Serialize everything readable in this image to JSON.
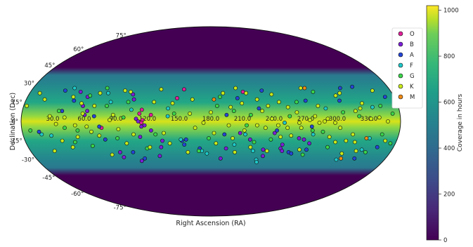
{
  "chart_data": {
    "type": "scatter",
    "projection": "mollweide",
    "xlabel": "Right Ascension (RA)",
    "ylabel": "Declination (Dec)",
    "colorbar": {
      "label": "Coverage in hours",
      "range": [
        0,
        1020
      ],
      "ticks": [
        "0",
        "200",
        "400",
        "600",
        "800",
        "1000"
      ],
      "colormap": "viridis"
    },
    "ra_ticks": [
      "30.0",
      "60.0",
      "90.0",
      "120.0",
      "150.0",
      "180.0",
      "210.0",
      "240.0",
      "270.0",
      "300.0",
      "330.0"
    ],
    "dec_ticks": [
      "75°",
      "60°",
      "45°",
      "30°",
      "15°",
      "0°",
      "-15°",
      "-30°",
      "-45°",
      "-60°",
      "-75°"
    ],
    "coverage_limits_dec": [
      -39,
      39
    ],
    "legend": {
      "placement": "top-right",
      "entries": [
        {
          "name": "O",
          "color": "#e0209a"
        },
        {
          "name": "B",
          "color": "#7b1fd8"
        },
        {
          "name": "A",
          "color": "#2445d6"
        },
        {
          "name": "F",
          "color": "#1ec8c8"
        },
        {
          "name": "G",
          "color": "#3ad44a"
        },
        {
          "name": "K",
          "color": "#c8ea1a"
        },
        {
          "name": "M",
          "color": "#ee8a14"
        }
      ]
    },
    "series": [
      {
        "name": "O",
        "color": "#e0209a",
        "points": [
          [
            212,
            23
          ],
          [
            114,
            9
          ],
          [
            112,
            6
          ],
          [
            115,
            1
          ],
          [
            114,
            -1
          ],
          [
            76,
            -5
          ],
          [
            123,
            5
          ],
          [
            147,
            18
          ],
          [
            153,
            25
          ]
        ]
      },
      {
        "name": "B",
        "color": "#7b1fd8",
        "points": [
          [
            50,
            23
          ],
          [
            57,
            12
          ],
          [
            59,
            19
          ],
          [
            60,
            5
          ],
          [
            62,
            8
          ],
          [
            105,
            17
          ],
          [
            103,
            21
          ],
          [
            109,
            2
          ],
          [
            111,
            0
          ],
          [
            114,
            -4
          ],
          [
            117,
            -3
          ],
          [
            123,
            -7
          ],
          [
            112,
            -12
          ],
          [
            133,
            -15
          ],
          [
            131,
            -20
          ],
          [
            128,
            -27
          ],
          [
            108,
            -31
          ],
          [
            91,
            -28
          ],
          [
            89,
            -24
          ],
          [
            190,
            -29
          ],
          [
            195,
            -21
          ],
          [
            208,
            -9
          ],
          [
            218,
            -14
          ],
          [
            232,
            -22
          ],
          [
            241,
            -9
          ],
          [
            249,
            -21
          ],
          [
            251,
            -23
          ],
          [
            233,
            -27
          ],
          [
            265,
            -13
          ],
          [
            270,
            -14
          ],
          [
            276,
            -17
          ],
          [
            250,
            -18
          ]
        ]
      },
      {
        "name": "A",
        "color": "#2445d6",
        "points": [
          [
            34,
            24
          ],
          [
            16,
            -8
          ],
          [
            38,
            8
          ],
          [
            47,
            16
          ],
          [
            69,
            4
          ],
          [
            74,
            -4
          ],
          [
            78,
            -14
          ],
          [
            102,
            -24
          ],
          [
            112,
            -29
          ],
          [
            152,
            -15
          ],
          [
            154,
            -18
          ],
          [
            156,
            -14
          ],
          [
            169,
            -21
          ],
          [
            193,
            -10
          ],
          [
            195,
            5
          ],
          [
            206,
            18
          ],
          [
            231,
            24
          ],
          [
            226,
            10
          ],
          [
            243,
            -7
          ],
          [
            258,
            -24
          ],
          [
            261,
            -25
          ],
          [
            275,
            -22
          ],
          [
            276,
            -4
          ],
          [
            272,
            16
          ],
          [
            305,
            16
          ],
          [
            311,
            26
          ],
          [
            324,
            27
          ],
          [
            351,
            19
          ],
          [
            344,
            -20
          ],
          [
            328,
            -29
          ]
        ]
      },
      {
        "name": "F",
        "color": "#1ec8c8",
        "points": [
          [
            18,
            -10
          ],
          [
            27,
            -11
          ],
          [
            42,
            26
          ],
          [
            78,
            22
          ],
          [
            83,
            15
          ],
          [
            104,
            9
          ],
          [
            139,
            4
          ],
          [
            139,
            10
          ],
          [
            151,
            -14
          ],
          [
            171,
            -23
          ],
          [
            176,
            -25
          ],
          [
            203,
            -18
          ],
          [
            213,
            -10
          ],
          [
            222,
            -23
          ],
          [
            227,
            -30
          ],
          [
            228,
            -32
          ],
          [
            250,
            -1
          ],
          [
            278,
            -10
          ],
          [
            290,
            10
          ],
          [
            310,
            -30
          ],
          [
            330,
            -22
          ],
          [
            333,
            -13
          ],
          [
            335,
            11
          ]
        ]
      },
      {
        "name": "G",
        "color": "#3ad44a",
        "points": [
          [
            8,
            -7
          ],
          [
            35,
            8
          ],
          [
            41,
            -5
          ],
          [
            48,
            -16
          ],
          [
            53,
            -7
          ],
          [
            61,
            20
          ],
          [
            64,
            -19
          ],
          [
            75,
            26
          ],
          [
            80,
            12
          ],
          [
            90,
            -13
          ],
          [
            97,
            3
          ],
          [
            100,
            15
          ],
          [
            117,
            -21
          ],
          [
            127,
            -10
          ],
          [
            145,
            6
          ],
          [
            168,
            -23
          ],
          [
            178,
            -13
          ],
          [
            186,
            12
          ],
          [
            189,
            19
          ],
          [
            202,
            8
          ],
          [
            214,
            -3
          ],
          [
            218,
            5
          ],
          [
            222,
            -16
          ],
          [
            238,
            -14
          ],
          [
            255,
            4
          ],
          [
            263,
            15
          ],
          [
            273,
            -26
          ],
          [
            277,
            -7
          ],
          [
            282,
            23
          ],
          [
            287,
            -8
          ],
          [
            295,
            -20
          ],
          [
            306,
            7
          ],
          [
            321,
            4
          ],
          [
            335,
            -24
          ],
          [
            343,
            12
          ],
          [
            344,
            -10
          ],
          [
            353,
            6
          ],
          [
            355,
            -17
          ]
        ]
      },
      {
        "name": "K",
        "color": "#c8ea1a",
        "points": [
          [
            3,
            12
          ],
          [
            10,
            22
          ],
          [
            18,
            17
          ],
          [
            24,
            -23
          ],
          [
            27,
            4
          ],
          [
            33,
            -2
          ],
          [
            36,
            -15
          ],
          [
            41,
            3
          ],
          [
            44,
            -20
          ],
          [
            45,
            19
          ],
          [
            51,
            -3
          ],
          [
            52,
            -12
          ],
          [
            55,
            14
          ],
          [
            58,
            6
          ],
          [
            62,
            -4
          ],
          [
            66,
            -8
          ],
          [
            68,
            12
          ],
          [
            70,
            22
          ],
          [
            73,
            -11
          ],
          [
            80,
            -26
          ],
          [
            84,
            1
          ],
          [
            87,
            5
          ],
          [
            92,
            -6
          ],
          [
            94,
            24
          ],
          [
            98,
            -17
          ],
          [
            100,
            23
          ],
          [
            106,
            -10
          ],
          [
            120,
            -20
          ],
          [
            125,
            15
          ],
          [
            130,
            25
          ],
          [
            135,
            -9
          ],
          [
            140,
            -17
          ],
          [
            143,
            14
          ],
          [
            157,
            -24
          ],
          [
            160,
            6
          ],
          [
            162,
            17
          ],
          [
            165,
            -5
          ],
          [
            173,
            -1
          ],
          [
            180,
            7
          ],
          [
            183,
            -9
          ],
          [
            185,
            -17
          ],
          [
            192,
            22
          ],
          [
            197,
            -3
          ],
          [
            199,
            11
          ],
          [
            201,
            -13
          ],
          [
            204,
            -24
          ],
          [
            205,
            26
          ],
          [
            210,
            14
          ],
          [
            212,
            -7
          ],
          [
            215,
            22
          ],
          [
            219,
            -20
          ],
          [
            224,
            -3
          ],
          [
            225,
            17
          ],
          [
            229,
            8
          ],
          [
            232,
            -5
          ],
          [
            235,
            12
          ],
          [
            236,
            -23
          ],
          [
            238,
            2
          ],
          [
            240,
            21
          ],
          [
            244,
            -3
          ],
          [
            246,
            15
          ],
          [
            247,
            -12
          ],
          [
            253,
            -5
          ],
          [
            254,
            11
          ],
          [
            257,
            -11
          ],
          [
            262,
            7
          ],
          [
            264,
            -1
          ],
          [
            266,
            -5
          ],
          [
            268,
            -22
          ],
          [
            271,
            26
          ],
          [
            274,
            1
          ],
          [
            279,
            4
          ],
          [
            283,
            -1
          ],
          [
            283,
            12
          ],
          [
            288,
            0
          ],
          [
            291,
            2
          ],
          [
            294,
            -12
          ],
          [
            298,
            -1
          ],
          [
            301,
            -16
          ],
          [
            303,
            20
          ],
          [
            303,
            -5
          ],
          [
            308,
            22
          ],
          [
            311,
            -15
          ],
          [
            312,
            -25
          ],
          [
            316,
            -10
          ],
          [
            318,
            8
          ],
          [
            320,
            -16
          ],
          [
            323,
            10
          ],
          [
            325,
            -23
          ],
          [
            326,
            14
          ],
          [
            332,
            2
          ],
          [
            340,
            3
          ],
          [
            342,
            24
          ],
          [
            348,
            0
          ],
          [
            349,
            -15
          ]
        ]
      },
      {
        "name": "M",
        "color": "#ee8a14",
        "points": [
          [
            275,
            26
          ],
          [
            314,
            -29
          ],
          [
            330,
            -13
          ],
          [
            183,
            17
          ]
        ]
      }
    ]
  }
}
